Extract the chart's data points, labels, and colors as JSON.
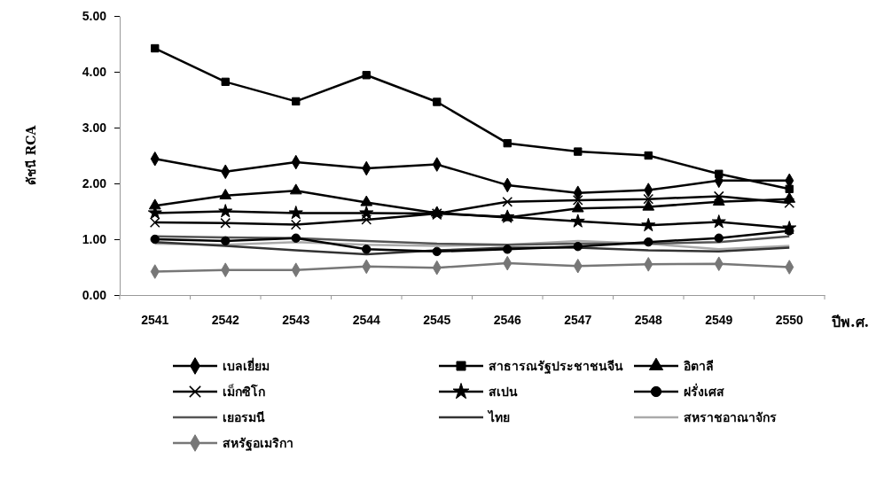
{
  "chart_data": {
    "type": "line",
    "xlabel": "ปีพ.ศ.",
    "ylabel": "ดัชนี RCA",
    "categories": [
      "2541",
      "2542",
      "2543",
      "2544",
      "2545",
      "2546",
      "2547",
      "2548",
      "2549",
      "2550"
    ],
    "ylim": [
      0,
      5
    ],
    "yticks": [
      {
        "value": 0,
        "label": "0.00"
      },
      {
        "value": 1,
        "label": "1.00"
      },
      {
        "value": 2,
        "label": "2.00"
      },
      {
        "value": 3,
        "label": "3.00"
      },
      {
        "value": 4,
        "label": "4.00"
      },
      {
        "value": 5,
        "label": "5.00"
      }
    ],
    "legend": "bottom",
    "series": [
      {
        "name": "เบลเยี่ยม",
        "color": "#000000",
        "marker": "diamond",
        "values": [
          2.44,
          2.21,
          2.38,
          2.27,
          2.34,
          1.97,
          1.83,
          1.88,
          2.05,
          2.05
        ]
      },
      {
        "name": "สาธารณรัฐประชาชนจีน",
        "color": "#000000",
        "marker": "square",
        "values": [
          4.42,
          3.82,
          3.47,
          3.94,
          3.46,
          2.72,
          2.57,
          2.5,
          2.17,
          1.9
        ]
      },
      {
        "name": "อิตาลี",
        "color": "#000000",
        "marker": "triangle",
        "values": [
          1.6,
          1.78,
          1.87,
          1.66,
          1.47,
          1.39,
          1.55,
          1.58,
          1.67,
          1.72
        ]
      },
      {
        "name": "เม็กซิโก",
        "color": "#000000",
        "marker": "cross",
        "values": [
          1.3,
          1.29,
          1.26,
          1.35,
          1.46,
          1.67,
          1.7,
          1.72,
          1.77,
          1.65
        ]
      },
      {
        "name": "สเปน",
        "color": "#000000",
        "marker": "star",
        "values": [
          1.47,
          1.5,
          1.47,
          1.47,
          1.46,
          1.4,
          1.32,
          1.25,
          1.31,
          1.2
        ]
      },
      {
        "name": "ฝรั่งเศส",
        "color": "#000000",
        "marker": "circle",
        "values": [
          1.0,
          0.97,
          1.02,
          0.82,
          0.78,
          0.82,
          0.87,
          0.95,
          1.02,
          1.15
        ]
      },
      {
        "name": "เยอรมนี",
        "color": "#555555",
        "marker": "none",
        "values": [
          1.05,
          1.03,
          1.02,
          0.97,
          0.92,
          0.9,
          0.92,
          0.92,
          0.95,
          1.05
        ]
      },
      {
        "name": "ไทย",
        "color": "#333333",
        "marker": "none",
        "values": [
          0.95,
          0.88,
          0.8,
          0.73,
          0.8,
          0.85,
          0.85,
          0.8,
          0.78,
          0.85
        ]
      },
      {
        "name": "สหราชอาณาจักร",
        "color": "#aaaaaa",
        "marker": "none",
        "values": [
          0.92,
          0.9,
          0.95,
          0.9,
          0.88,
          0.9,
          0.97,
          0.92,
          0.82,
          0.88
        ]
      },
      {
        "name": "สหรัฐอเมริกา",
        "color": "#777777",
        "marker": "diamond",
        "values": [
          0.42,
          0.45,
          0.45,
          0.51,
          0.49,
          0.57,
          0.52,
          0.55,
          0.56,
          0.5
        ]
      }
    ]
  }
}
